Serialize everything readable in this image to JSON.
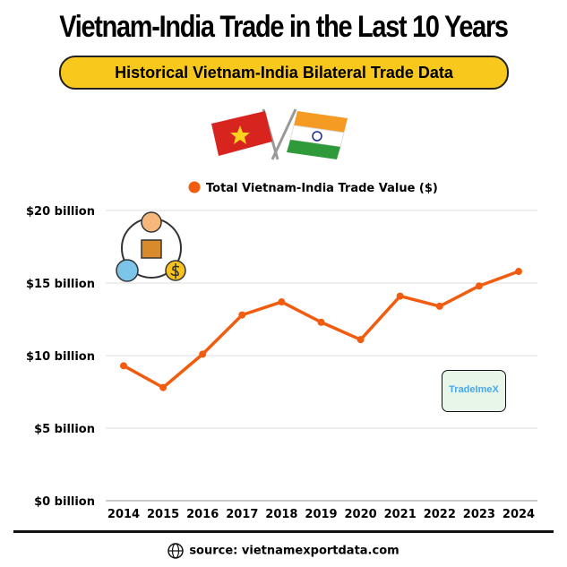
{
  "title": "Vietnam-India Trade in the Last 10 Years",
  "subtitle": "Historical Vietnam-India Bilateral Trade Data",
  "logo_text": "TradeImeX",
  "source": "source: vietnamexportdata.com",
  "icons": [
    "vietnam-flag",
    "india-flag",
    "trade-cycle-icon",
    "globe-icon"
  ],
  "chart_data": {
    "type": "line",
    "categories": [
      "2014",
      "2015",
      "2016",
      "2017",
      "2018",
      "2019",
      "2020",
      "2021",
      "2022",
      "2023",
      "2024"
    ],
    "series": [
      {
        "name": "Total Vietnam-India Trade Value ($)",
        "color": "#f25c0f",
        "values": [
          9.3,
          7.8,
          10.1,
          12.8,
          13.7,
          12.3,
          11.1,
          14.1,
          13.4,
          14.8,
          15.8
        ]
      }
    ],
    "y_ticks": [
      "$0 billion",
      "$5 billion",
      "$10 billion",
      "$15 billion",
      "$20 billion"
    ],
    "ylim": [
      0,
      20
    ],
    "grid": true,
    "legend": "top"
  }
}
